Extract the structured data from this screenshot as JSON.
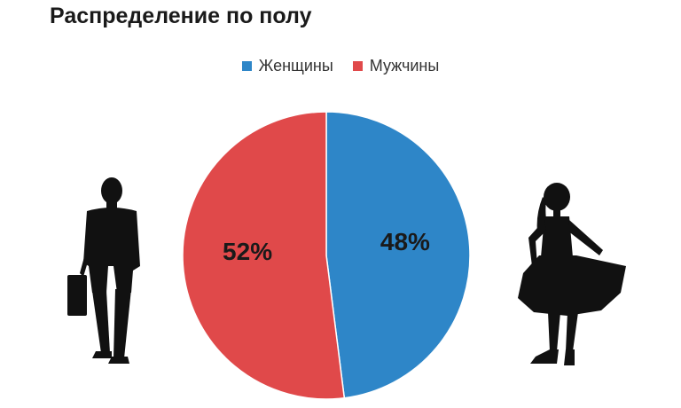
{
  "chart_data": {
    "type": "pie",
    "title": "Распределение по полу",
    "categories": [
      "Женщины",
      "Мужчины"
    ],
    "values": [
      48,
      52
    ],
    "data_labels": [
      "48%",
      "52%"
    ],
    "colors": [
      "#2e86c8",
      "#e0494a"
    ],
    "legend_position": "top-center",
    "start": "12 o'clock, clockwise"
  },
  "decorations": {
    "left_icon": "man-with-briefcase-silhouette-icon",
    "right_icon": "woman-in-dress-silhouette-icon"
  }
}
